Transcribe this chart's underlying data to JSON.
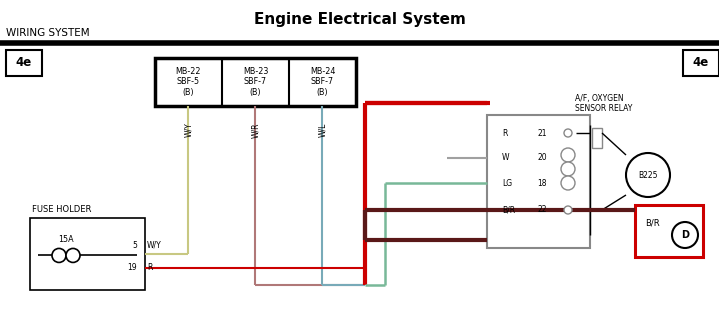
{
  "title": "Engine Electrical System",
  "subtitle": "WIRING SYSTEM",
  "bg_color": "#ffffff",
  "title_fontsize": 11,
  "page_ref": "4e",
  "fuse_holder_label": "FUSE HOLDER",
  "fuse_amp": "15A",
  "pin5": "5",
  "pin19": "19",
  "wire_wy": "W/Y",
  "wire_r": "R",
  "relay_title_line1": "A/F, OXYGEN",
  "relay_title_line2": "SENSOR RELAY",
  "connector_b225": "B225",
  "connector_d_wire": "B/R",
  "connector_d_id": "D",
  "mb_labels": [
    "MB-22\nSBF-5\n(B)",
    "MB-23\nSBF-7\n(B)",
    "MB-24\nSBF-7\n(B)"
  ],
  "mb_wire_labels": [
    "W/Y",
    "W/R",
    "W/L"
  ],
  "relay_pin_wires": [
    "R",
    "W",
    "LG",
    "B/R"
  ],
  "relay_pin_nums": [
    "21",
    "20",
    "18",
    "22"
  ],
  "col_wy": "#c8c882",
  "col_wr": "#b07878",
  "col_wl": "#78aab8",
  "col_red": "#cc0000",
  "col_lg": "#78b898",
  "col_br": "#5a1818",
  "col_black": "#000000",
  "col_gray": "#888888",
  "col_red_box": "#cc0000"
}
